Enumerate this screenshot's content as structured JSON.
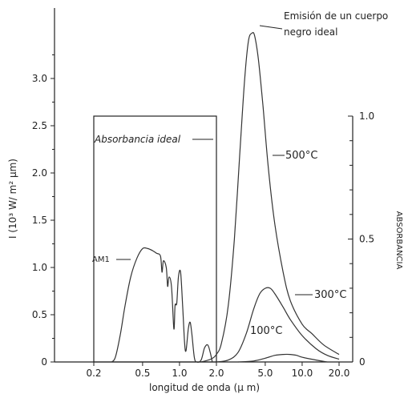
{
  "chart_data": {
    "type": "line",
    "xlabel": "longitud de onda (µ m)",
    "ylabel": "I (10³ W/ m² µm)",
    "y2label": "ABSORBANCIA",
    "x_scale": "log",
    "xlim": [
      0.1,
      28
    ],
    "ylim": [
      0,
      3.5
    ],
    "y2lim": [
      0,
      1.0
    ],
    "x_ticks": [
      0.2,
      0.5,
      1.0,
      2.0,
      5.0,
      10.0,
      20.0
    ],
    "x_tick_labels": [
      "0.2",
      "0.5",
      "1.0",
      "2.0",
      "5.0",
      "10.0",
      "20.0"
    ],
    "y_ticks": [
      0,
      0.5,
      1.0,
      1.5,
      2.0,
      2.5,
      3.0
    ],
    "y_tick_labels": [
      "0",
      "0.5",
      "1.0",
      "1.5",
      "2.0",
      "2.5",
      "3.0"
    ],
    "y2_ticks": [
      0,
      0.5,
      1.0
    ],
    "y2_tick_labels": [
      "0",
      "0.5",
      "1.0"
    ],
    "annotations": {
      "blackbody": [
        "Emisión de un cuerpo",
        "negro ideal"
      ],
      "ideal_absorbance": "Absorbancia ideal",
      "am1": "AM1",
      "t500": "500°C",
      "t300": "300°C",
      "t100": "100°C"
    },
    "ideal_absorbance_box": {
      "x_start": 0.2,
      "x_end": 2.0,
      "absorbance": 1.0
    },
    "series": [
      {
        "name": "AM1",
        "points": [
          [
            0.28,
            0.0
          ],
          [
            0.3,
            0.05
          ],
          [
            0.33,
            0.3
          ],
          [
            0.36,
            0.6
          ],
          [
            0.4,
            0.9
          ],
          [
            0.45,
            1.1
          ],
          [
            0.5,
            1.2
          ],
          [
            0.55,
            1.2
          ],
          [
            0.6,
            1.18
          ],
          [
            0.65,
            1.15
          ],
          [
            0.7,
            1.12
          ],
          [
            0.72,
            0.95
          ],
          [
            0.74,
            1.07
          ],
          [
            0.78,
            1.0
          ],
          [
            0.8,
            0.8
          ],
          [
            0.82,
            0.9
          ],
          [
            0.86,
            0.8
          ],
          [
            0.9,
            0.35
          ],
          [
            0.92,
            0.6
          ],
          [
            0.95,
            0.62
          ],
          [
            0.98,
            0.9
          ],
          [
            1.02,
            0.95
          ],
          [
            1.06,
            0.6
          ],
          [
            1.1,
            0.2
          ],
          [
            1.13,
            0.12
          ],
          [
            1.18,
            0.35
          ],
          [
            1.22,
            0.42
          ],
          [
            1.26,
            0.3
          ],
          [
            1.32,
            0.05
          ],
          [
            1.38,
            0.0
          ],
          [
            1.5,
            0.02
          ],
          [
            1.6,
            0.15
          ],
          [
            1.7,
            0.18
          ],
          [
            1.78,
            0.1
          ],
          [
            1.85,
            0.0
          ]
        ]
      },
      {
        "name": "500°C",
        "points": [
          [
            1.5,
            0.0
          ],
          [
            1.8,
            0.03
          ],
          [
            2.0,
            0.08
          ],
          [
            2.2,
            0.2
          ],
          [
            2.5,
            0.6
          ],
          [
            2.8,
            1.3
          ],
          [
            3.1,
            2.2
          ],
          [
            3.4,
            3.0
          ],
          [
            3.65,
            3.4
          ],
          [
            3.9,
            3.48
          ],
          [
            4.1,
            3.45
          ],
          [
            4.4,
            3.2
          ],
          [
            4.8,
            2.7
          ],
          [
            5.3,
            2.05
          ],
          [
            6.0,
            1.45
          ],
          [
            7.0,
            0.95
          ],
          [
            8.0,
            0.65
          ],
          [
            10.0,
            0.4
          ],
          [
            12.0,
            0.3
          ],
          [
            15.0,
            0.18
          ],
          [
            20.0,
            0.08
          ]
        ]
      },
      {
        "name": "300°C",
        "points": [
          [
            2.0,
            0.0
          ],
          [
            2.5,
            0.02
          ],
          [
            3.0,
            0.1
          ],
          [
            3.5,
            0.3
          ],
          [
            4.0,
            0.55
          ],
          [
            4.5,
            0.72
          ],
          [
            5.0,
            0.78
          ],
          [
            5.5,
            0.78
          ],
          [
            6.0,
            0.72
          ],
          [
            7.0,
            0.58
          ],
          [
            8.0,
            0.45
          ],
          [
            10.0,
            0.28
          ],
          [
            13.0,
            0.14
          ],
          [
            16.0,
            0.07
          ],
          [
            20.0,
            0.03
          ]
        ]
      },
      {
        "name": "100°C",
        "points": [
          [
            3.0,
            0.0
          ],
          [
            4.0,
            0.01
          ],
          [
            5.0,
            0.04
          ],
          [
            6.0,
            0.07
          ],
          [
            7.0,
            0.08
          ],
          [
            8.0,
            0.08
          ],
          [
            9.0,
            0.07
          ],
          [
            10.0,
            0.05
          ],
          [
            13.0,
            0.02
          ],
          [
            16.0,
            0.0
          ]
        ]
      }
    ]
  }
}
